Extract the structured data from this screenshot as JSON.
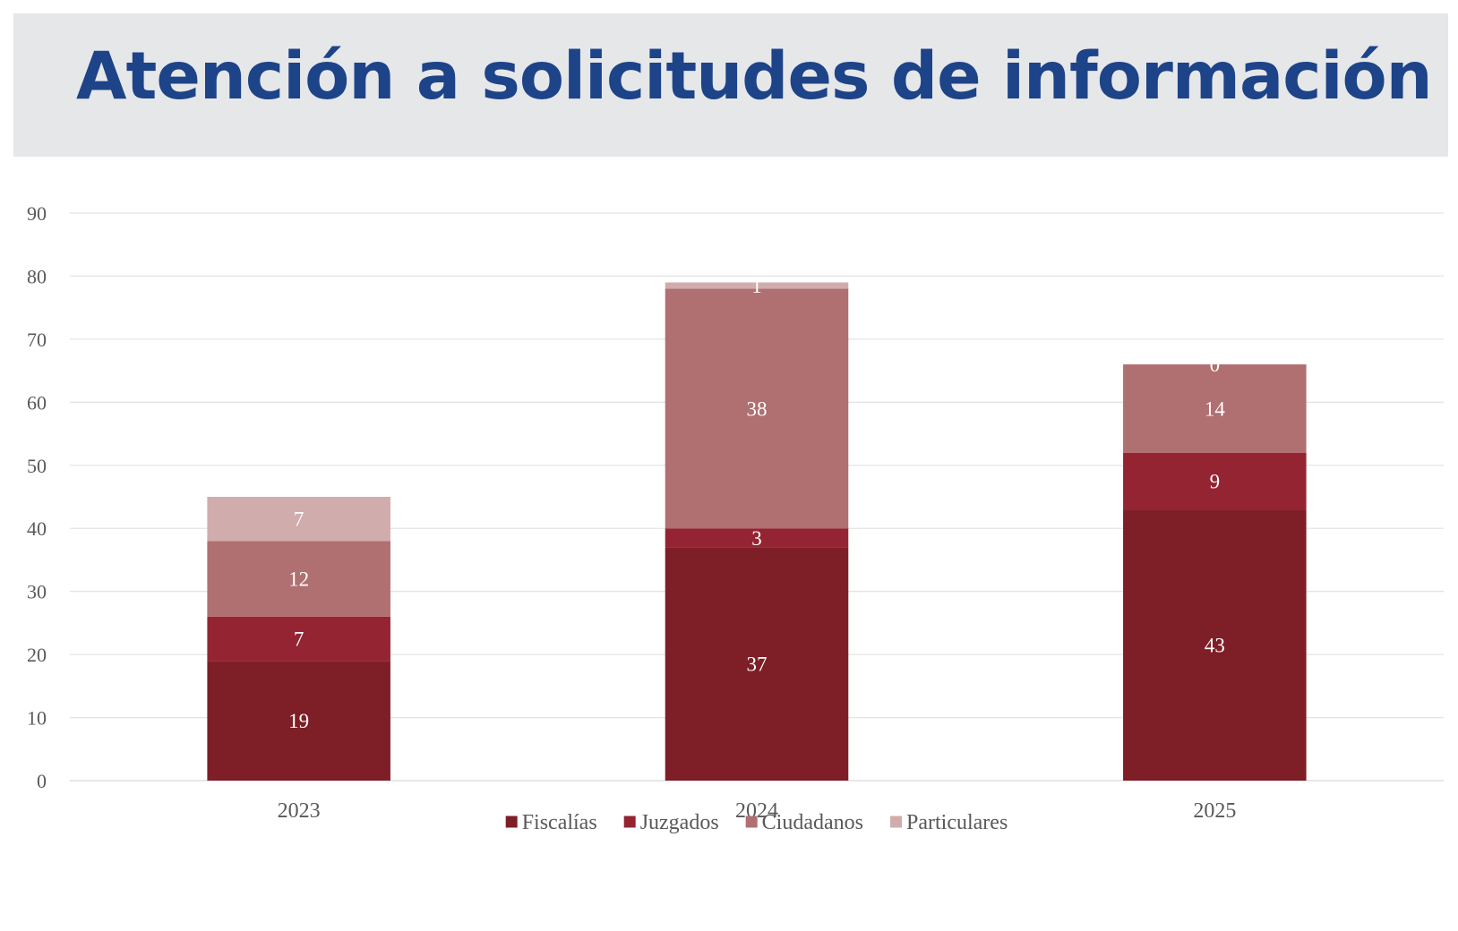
{
  "header": {
    "title": "Atención a solicitudes de información"
  },
  "chart_data": {
    "type": "bar",
    "stacked": true,
    "categories": [
      "2023",
      "2024",
      "2025"
    ],
    "series": [
      {
        "name": "Fiscalías",
        "values": [
          19,
          37,
          43
        ],
        "color": "#7e1e26"
      },
      {
        "name": "Juzgados",
        "values": [
          7,
          3,
          9
        ],
        "color": "#942432"
      },
      {
        "name": "Ciudadanos",
        "values": [
          12,
          38,
          14
        ],
        "color": "#b06f70"
      },
      {
        "name": "Particulares",
        "values": [
          7,
          1,
          0
        ],
        "color": "#d0acac"
      }
    ],
    "ylim": [
      0,
      90
    ],
    "yticks": [
      0,
      10,
      20,
      30,
      40,
      50,
      60,
      70,
      80,
      90
    ],
    "grid": true,
    "legend": "bottom",
    "data_labels": true
  }
}
